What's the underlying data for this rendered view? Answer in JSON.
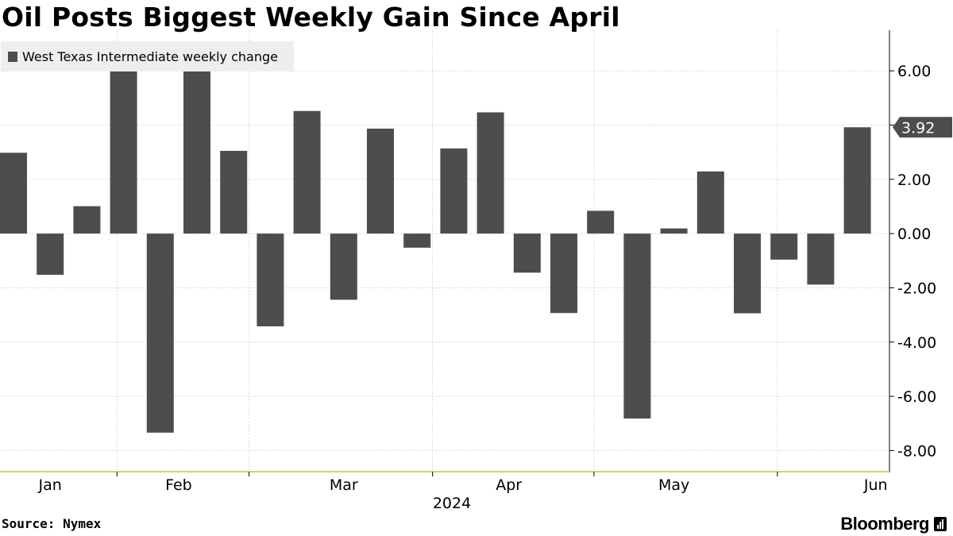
{
  "title": "Oil Posts Biggest Weekly Gain Since April",
  "source": "Source: Nymex",
  "brand": "Bloomberg",
  "colors": {
    "bar": "#4d4d4d",
    "grid": "#d9d9d9",
    "axis_line": "#c8d96b",
    "legend_bg": "#eeeeee",
    "callout_bg": "#4d4d4d"
  },
  "chart_data": {
    "type": "bar",
    "title": "Oil Posts Biggest Weekly Gain Since April",
    "legend": [
      "West Texas Intermediate weekly change"
    ],
    "legend_position": "top-left",
    "series": [
      {
        "name": "West Texas Intermediate weekly change",
        "values": [
          2.98,
          -1.52,
          1.01,
          6.26,
          -7.34,
          6.29,
          3.05,
          -3.42,
          4.52,
          -2.44,
          3.87,
          -0.52,
          3.14,
          4.47,
          -1.44,
          -2.93,
          0.84,
          -6.82,
          0.19,
          2.29,
          -2.94,
          -0.96,
          -1.88,
          3.92
        ]
      }
    ],
    "ylim": [
      -8.75,
      7.5
    ],
    "yticks": [
      "6.00",
      "4.00",
      "2.00",
      "0.00",
      "-2.00",
      "-4.00",
      "-6.00",
      "-8.00"
    ],
    "ytick_values": [
      6,
      4,
      2,
      0,
      -2,
      -4,
      -6,
      -8
    ],
    "x_month_labels": [
      "Jan",
      "Feb",
      "Mar",
      "Apr",
      "May",
      "Jun"
    ],
    "x_month_label_weeks": [
      1.0,
      4.5,
      9.0,
      13.5,
      18.0,
      23.5
    ],
    "x_month_boundaries": [
      2.82,
      6.42,
      11.42,
      15.82,
      20.82
    ],
    "x_year_label": "2024",
    "last_value_label": "3.92",
    "last_value": 3.92,
    "grid": true,
    "xlabel": "",
    "ylabel": ""
  }
}
